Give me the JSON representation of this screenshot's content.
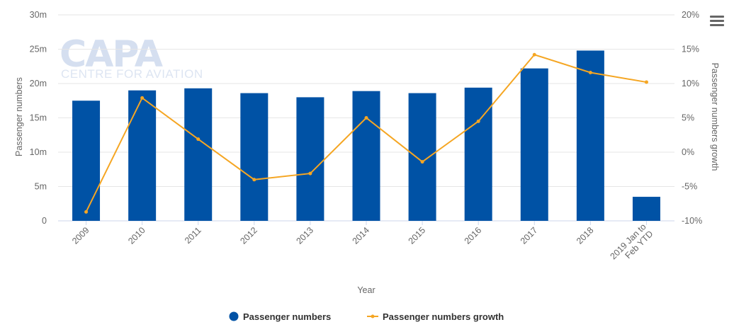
{
  "logo": {
    "main": "CAPA",
    "sub": "CENTRE FOR AVIATION"
  },
  "chart_data": {
    "type": "bar",
    "categories": [
      "2009",
      "2010",
      "2011",
      "2012",
      "2013",
      "2014",
      "2015",
      "2016",
      "2017",
      "2018",
      "2019 Jan to Feb YTD"
    ],
    "category_lines": [
      [
        "2009"
      ],
      [
        "2010"
      ],
      [
        "2011"
      ],
      [
        "2012"
      ],
      [
        "2013"
      ],
      [
        "2014"
      ],
      [
        "2015"
      ],
      [
        "2016"
      ],
      [
        "2017"
      ],
      [
        "2018"
      ],
      [
        "2019 Jan to",
        "Feb YTD"
      ]
    ],
    "series": [
      {
        "name": "Passenger numbers",
        "type": "bar",
        "axis": "left",
        "values": [
          17.5,
          19.0,
          19.3,
          18.6,
          18.0,
          18.9,
          18.6,
          19.4,
          22.2,
          24.8,
          3.5
        ]
      },
      {
        "name": "Passenger numbers growth",
        "type": "line",
        "axis": "right",
        "values": [
          -8.7,
          7.9,
          1.9,
          -4.0,
          -3.1,
          5.0,
          -1.4,
          4.5,
          14.2,
          11.6,
          10.2
        ]
      }
    ],
    "xlabel": "Year",
    "ylabel": "Passenger numbers",
    "y2label": "Passenger numbers growth",
    "ylim": [
      0,
      30
    ],
    "y_ticks": [
      0,
      5,
      10,
      15,
      20,
      25,
      30
    ],
    "y_tick_labels": [
      "0",
      "5m",
      "10m",
      "15m",
      "20m",
      "25m",
      "30m"
    ],
    "y2lim": [
      -10,
      20
    ],
    "y2_ticks": [
      -10,
      -5,
      0,
      5,
      10,
      15,
      20
    ],
    "y2_tick_labels": [
      "-10%",
      "-5%",
      "0%",
      "5%",
      "10%",
      "15%",
      "20%"
    ],
    "grid": true,
    "legend_position": "bottom-center",
    "colors": {
      "bar": "#0052a5",
      "line": "#f5a623",
      "grid": "#e6e6e6",
      "text": "#666666"
    }
  },
  "menu_icon": "hamburger-menu-icon"
}
